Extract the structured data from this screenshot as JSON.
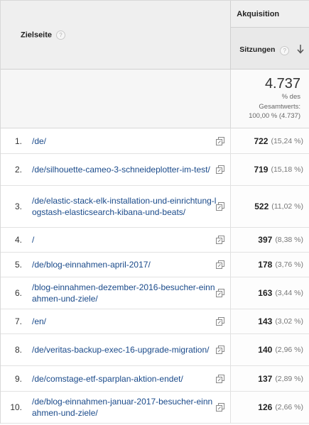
{
  "header": {
    "dimension_label": "Zielseite",
    "group_label": "Akquisition",
    "metric_label": "Sitzungen",
    "help_glyph": "?"
  },
  "total": {
    "value": "4.737",
    "line1": "% des",
    "line2": "Gesamtwerts:",
    "line3": "100,00 % (4.737)"
  },
  "rows": [
    {
      "index": "1.",
      "page": "/de/",
      "value": "722",
      "pct": "(15,24 %)"
    },
    {
      "index": "2.",
      "page": "/de/silhouette-cameo-3-schneideplotter-im-test/",
      "value": "719",
      "pct": "(15,18 %)"
    },
    {
      "index": "3.",
      "page": "/de/elastic-stack-elk-installation-und-einrichtung-logstash-elasticsearch-kibana-und-beats/",
      "value": "522",
      "pct": "(11,02 %)"
    },
    {
      "index": "4.",
      "page": "/",
      "value": "397",
      "pct": "(8,38 %)"
    },
    {
      "index": "5.",
      "page": "/de/blog-einnahmen-april-2017/",
      "value": "178",
      "pct": "(3,76 %)"
    },
    {
      "index": "6.",
      "page": "/blog-einnahmen-dezember-2016-besucher-einnahmen-und-ziele/",
      "value": "163",
      "pct": "(3,44 %)"
    },
    {
      "index": "7.",
      "page": "/en/",
      "value": "143",
      "pct": "(3,02 %)"
    },
    {
      "index": "8.",
      "page": "/de/veritas-backup-exec-16-upgrade-migration/",
      "value": "140",
      "pct": "(2,96 %)"
    },
    {
      "index": "9.",
      "page": "/de/comstage-etf-sparplan-aktion-endet/",
      "value": "137",
      "pct": "(2,89 %)"
    },
    {
      "index": "10.",
      "page": "/de/blog-einnahmen-januar-2017-besucher-einnahmen-und-ziele/",
      "value": "126",
      "pct": "(2,66 %)"
    }
  ],
  "icons": {
    "help": "help-circle-icon",
    "sort": "sort-descending-arrow-icon",
    "open": "open-in-new-window-icon"
  }
}
